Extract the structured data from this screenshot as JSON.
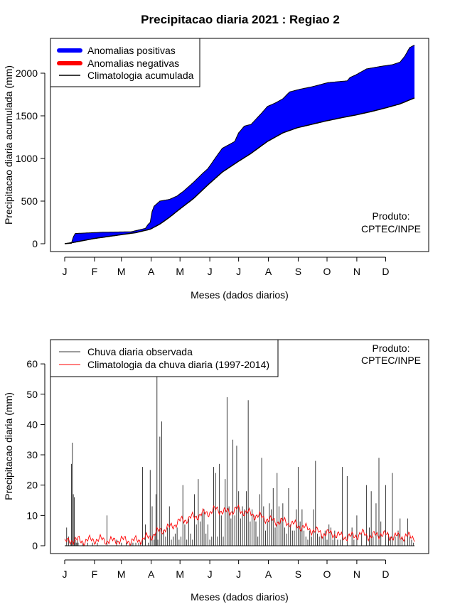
{
  "page": {
    "title": "Precipitacao diaria 2021 : Regiao 2"
  },
  "credit": {
    "line1": "Produto:",
    "line2": "CPTEC/INPE"
  },
  "months": [
    "J",
    "F",
    "M",
    "A",
    "M",
    "J",
    "J",
    "A",
    "S",
    "O",
    "N",
    "D"
  ],
  "colors": {
    "positive": "#0000ff",
    "negative": "#ff0000",
    "climatology": "#000000",
    "observed": "#3a3a3a",
    "clim_daily": "#ff0000"
  },
  "chart_data": [
    {
      "type": "area",
      "xlabel": "Meses (dados diarios)",
      "ylabel": "Precipitacao diaria acumulada (mm)",
      "yticks": [
        0,
        500,
        1000,
        1500,
        2000
      ],
      "ylim": [
        0,
        2350
      ],
      "xlim": [
        1,
        365
      ],
      "legend": {
        "position": "top-left",
        "items": [
          "Anomalias positivas",
          "Anomalias negativas",
          "Climatologia acumulada"
        ]
      },
      "series": [
        {
          "name": "Climatologia acumulada",
          "x": [
            1,
            10,
            31,
            59,
            75,
            90,
            100,
            110,
            120,
            135,
            151,
            165,
            181,
            195,
            212,
            228,
            243,
            258,
            273,
            290,
            304,
            320,
            334,
            350,
            365
          ],
          "y": [
            0,
            15,
            60,
            105,
            130,
            170,
            230,
            310,
            400,
            530,
            700,
            840,
            960,
            1060,
            1200,
            1300,
            1360,
            1400,
            1440,
            1480,
            1510,
            1550,
            1590,
            1640,
            1710
          ]
        },
        {
          "name": "Precipitacao acumulada observada",
          "x": [
            1,
            8,
            10,
            12,
            40,
            70,
            85,
            88,
            90,
            92,
            94,
            96,
            100,
            110,
            118,
            125,
            135,
            145,
            150,
            158,
            165,
            170,
            178,
            182,
            188,
            195,
            205,
            212,
            220,
            228,
            235,
            245,
            258,
            265,
            275,
            285,
            295,
            298,
            304,
            315,
            330,
            342,
            350,
            355,
            360,
            365
          ],
          "y": [
            0,
            5,
            80,
            120,
            135,
            140,
            180,
            230,
            250,
            380,
            440,
            460,
            500,
            520,
            560,
            620,
            720,
            830,
            880,
            1010,
            1120,
            1150,
            1200,
            1300,
            1380,
            1400,
            1520,
            1610,
            1650,
            1700,
            1780,
            1810,
            1840,
            1860,
            1890,
            1900,
            1910,
            1950,
            1980,
            2050,
            2080,
            2100,
            2130,
            2200,
            2300,
            2330
          ]
        }
      ]
    },
    {
      "type": "bar",
      "xlabel": "Meses (dados diarios)",
      "ylabel": "Precipitacao diaria (mm)",
      "yticks": [
        0,
        10,
        20,
        30,
        40,
        50,
        60
      ],
      "ylim": [
        0,
        68
      ],
      "xlim": [
        1,
        365
      ],
      "legend": {
        "position": "top-left",
        "items": [
          "Chuva diaria observada",
          "Climatologia da chuva diaria (1997-2014)"
        ]
      },
      "series": [
        {
          "name": "Chuva diaria observada",
          "x": [
            2,
            3,
            5,
            7,
            8,
            9,
            10,
            11,
            12,
            13,
            14,
            15,
            20,
            25,
            30,
            35,
            45,
            55,
            60,
            65,
            70,
            72,
            75,
            78,
            80,
            82,
            85,
            88,
            90,
            92,
            94,
            95,
            96,
            97,
            98,
            100,
            102,
            104,
            106,
            108,
            110,
            112,
            114,
            116,
            118,
            120,
            122,
            124,
            126,
            128,
            130,
            132,
            134,
            136,
            138,
            140,
            142,
            144,
            146,
            148,
            150,
            152,
            154,
            156,
            158,
            160,
            162,
            164,
            166,
            168,
            170,
            172,
            174,
            176,
            178,
            180,
            182,
            184,
            186,
            188,
            190,
            192,
            194,
            196,
            198,
            200,
            202,
            204,
            206,
            208,
            210,
            212,
            214,
            216,
            218,
            220,
            222,
            224,
            226,
            228,
            230,
            232,
            234,
            236,
            238,
            240,
            242,
            244,
            246,
            248,
            250,
            252,
            254,
            256,
            258,
            260,
            262,
            264,
            266,
            268,
            270,
            272,
            274,
            276,
            278,
            280,
            282,
            285,
            288,
            290,
            295,
            300,
            302,
            305,
            310,
            315,
            318,
            320,
            322,
            325,
            328,
            330,
            335,
            338,
            340,
            342,
            345,
            348,
            350,
            352,
            355,
            358,
            360,
            362,
            364
          ],
          "y": [
            0,
            6,
            3,
            1,
            27,
            34,
            17,
            16,
            2,
            1,
            2,
            1,
            1,
            1,
            1,
            1,
            10,
            2,
            1,
            1,
            1,
            1,
            1,
            1,
            1,
            26,
            7,
            1,
            25,
            13,
            2,
            4,
            17,
            57,
            2,
            36,
            41,
            5,
            3,
            6,
            13,
            2,
            3,
            4,
            6,
            2,
            3,
            20,
            7,
            2,
            9,
            4,
            2,
            17,
            7,
            22,
            8,
            11,
            12,
            4,
            7,
            2,
            3,
            26,
            24,
            3,
            27,
            10,
            3,
            22,
            49,
            13,
            9,
            35,
            10,
            33,
            18,
            9,
            13,
            12,
            18,
            48,
            8,
            12,
            10,
            8,
            3,
            17,
            29,
            13,
            5,
            8,
            14,
            12,
            19,
            6,
            24,
            13,
            9,
            14,
            6,
            4,
            19,
            7,
            5,
            5,
            12,
            26,
            8,
            12,
            5,
            3,
            2,
            5,
            3,
            12,
            28,
            4,
            3,
            4,
            3,
            5,
            2,
            7,
            6,
            2,
            5,
            2,
            2,
            26,
            23,
            6,
            2,
            10,
            4,
            20,
            6,
            18,
            3,
            14,
            29,
            8,
            20,
            4,
            3,
            24,
            3,
            5,
            9,
            3,
            2,
            9,
            3,
            2,
            1
          ]
        },
        {
          "name": "Climatologia da chuva diaria (1997-2014)",
          "x": [
            1,
            10,
            20,
            30,
            40,
            50,
            60,
            70,
            80,
            90,
            100,
            110,
            120,
            130,
            140,
            150,
            160,
            170,
            180,
            190,
            200,
            210,
            220,
            230,
            240,
            250,
            260,
            270,
            280,
            290,
            300,
            310,
            320,
            330,
            340,
            350,
            360,
            365
          ],
          "y": [
            1,
            2,
            1.5,
            2,
            2,
            1.5,
            2,
            1.5,
            2,
            3,
            5,
            6,
            8,
            9,
            10,
            11,
            12,
            11,
            12,
            11,
            10,
            9,
            8,
            8,
            7,
            6,
            5,
            4,
            4,
            3,
            3,
            4,
            3,
            4,
            3,
            3,
            3,
            3
          ]
        }
      ]
    }
  ]
}
